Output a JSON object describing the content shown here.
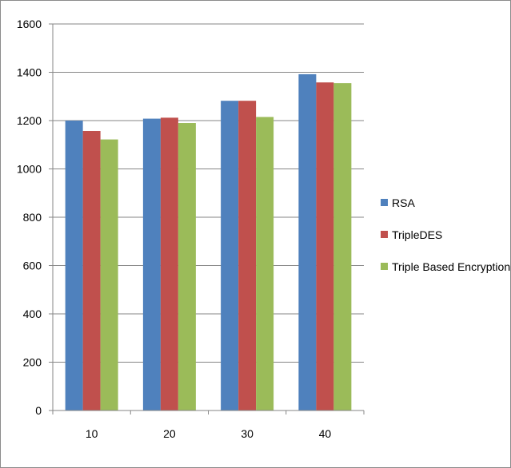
{
  "chart_data": {
    "type": "bar",
    "categories": [
      "10",
      "20",
      "30",
      "40"
    ],
    "series": [
      {
        "name": "RSA",
        "color": "#4f81bd",
        "values": [
          1200,
          1208,
          1282,
          1392
        ]
      },
      {
        "name": "TripleDES",
        "color": "#c0504d",
        "values": [
          1157,
          1212,
          1282,
          1358
        ]
      },
      {
        "name": "Triple Based Encryption",
        "color": "#9bbb59",
        "values": [
          1122,
          1190,
          1215,
          1355
        ]
      }
    ],
    "ylim": [
      0,
      1600
    ],
    "yticks": [
      0,
      200,
      400,
      600,
      800,
      1000,
      1200,
      1400,
      1600
    ],
    "grid": true,
    "legend_position": "right"
  }
}
